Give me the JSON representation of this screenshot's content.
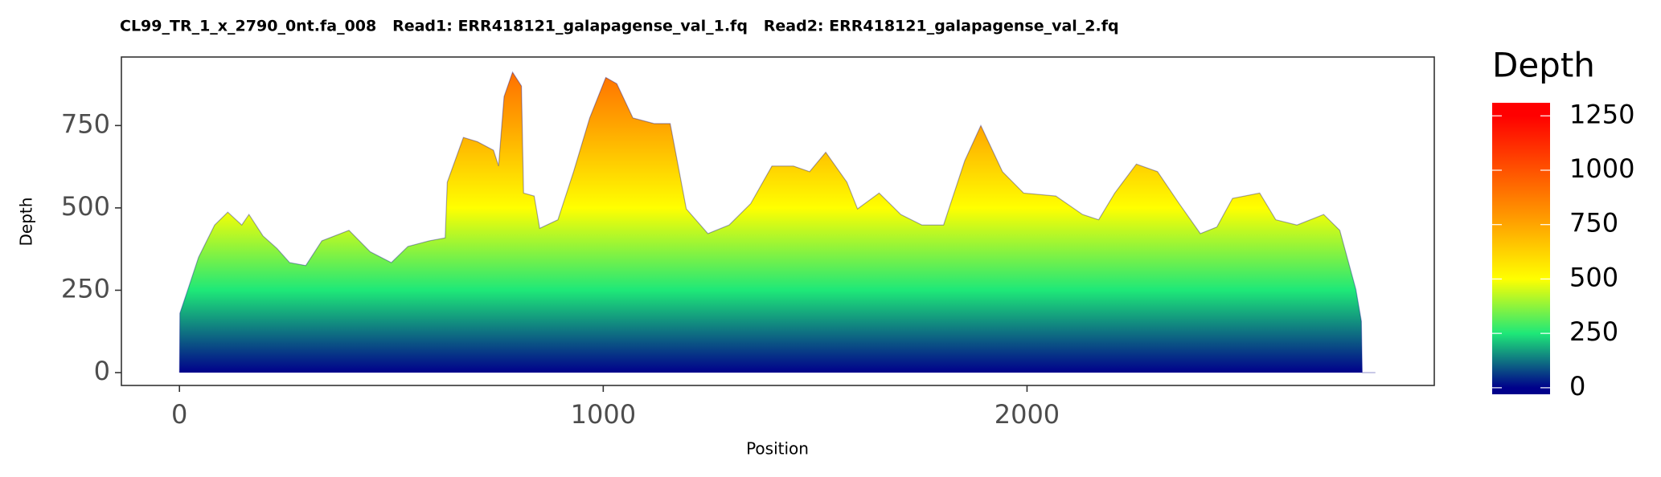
{
  "chart_data": {
    "type": "area",
    "title": "CL99_TR_1_x_2790_0nt.fa_008   Read1: ERR418121_galapagense_val_1.fq   Read2: ERR418121_galapagense_val_2.fq",
    "x_label": "Position",
    "y_label": "Depth",
    "x": [
      0,
      1,
      20,
      45,
      83,
      114,
      147,
      164,
      197,
      230,
      260,
      298,
      336,
      400,
      450,
      500,
      539,
      589,
      627,
      632,
      670,
      703,
      741,
      753,
      766,
      786,
      807,
      812,
      837,
      850,
      893,
      930,
      968,
      1006,
      1032,
      1070,
      1120,
      1158,
      1196,
      1247,
      1297,
      1348,
      1398,
      1449,
      1487,
      1525,
      1575,
      1600,
      1651,
      1702,
      1752,
      1803,
      1853,
      1891,
      1942,
      1992,
      2068,
      2131,
      2169,
      2207,
      2258,
      2308,
      2359,
      2409,
      2448,
      2485,
      2549,
      2587,
      2637,
      2700,
      2738,
      2776,
      2789,
      2791,
      2822
    ],
    "values": [
      0,
      180,
      253,
      350,
      448,
      487,
      448,
      480,
      415,
      377,
      334,
      325,
      400,
      432,
      367,
      334,
      383,
      400,
      409,
      578,
      714,
      701,
      675,
      627,
      838,
      912,
      870,
      545,
      536,
      438,
      464,
      610,
      773,
      896,
      877,
      773,
      756,
      756,
      497,
      422,
      448,
      513,
      627,
      627,
      610,
      669,
      578,
      497,
      545,
      480,
      448,
      448,
      643,
      750,
      610,
      545,
      536,
      480,
      464,
      545,
      633,
      610,
      513,
      422,
      442,
      529,
      545,
      464,
      448,
      480,
      432,
      253,
      156,
      0,
      0
    ],
    "xlim": [
      -137,
      2961
    ],
    "ylim": [
      -39,
      958
    ],
    "xticks": [
      0,
      1000,
      2000
    ],
    "yticks": [
      0,
      250,
      500,
      750
    ],
    "grid": false,
    "legend": {
      "title": "Depth",
      "lim": [
        -30,
        1310
      ],
      "ticks": [
        0,
        250,
        500,
        750,
        1000,
        1250
      ],
      "gradient": [
        {
          "value": 0,
          "color": "#00008b"
        },
        {
          "value": 250,
          "color": "#1ee878"
        },
        {
          "value": 500,
          "color": "#ffff00"
        },
        {
          "value": 750,
          "color": "#ffa500"
        },
        {
          "value": 1250,
          "color": "#ff0000"
        }
      ]
    }
  }
}
